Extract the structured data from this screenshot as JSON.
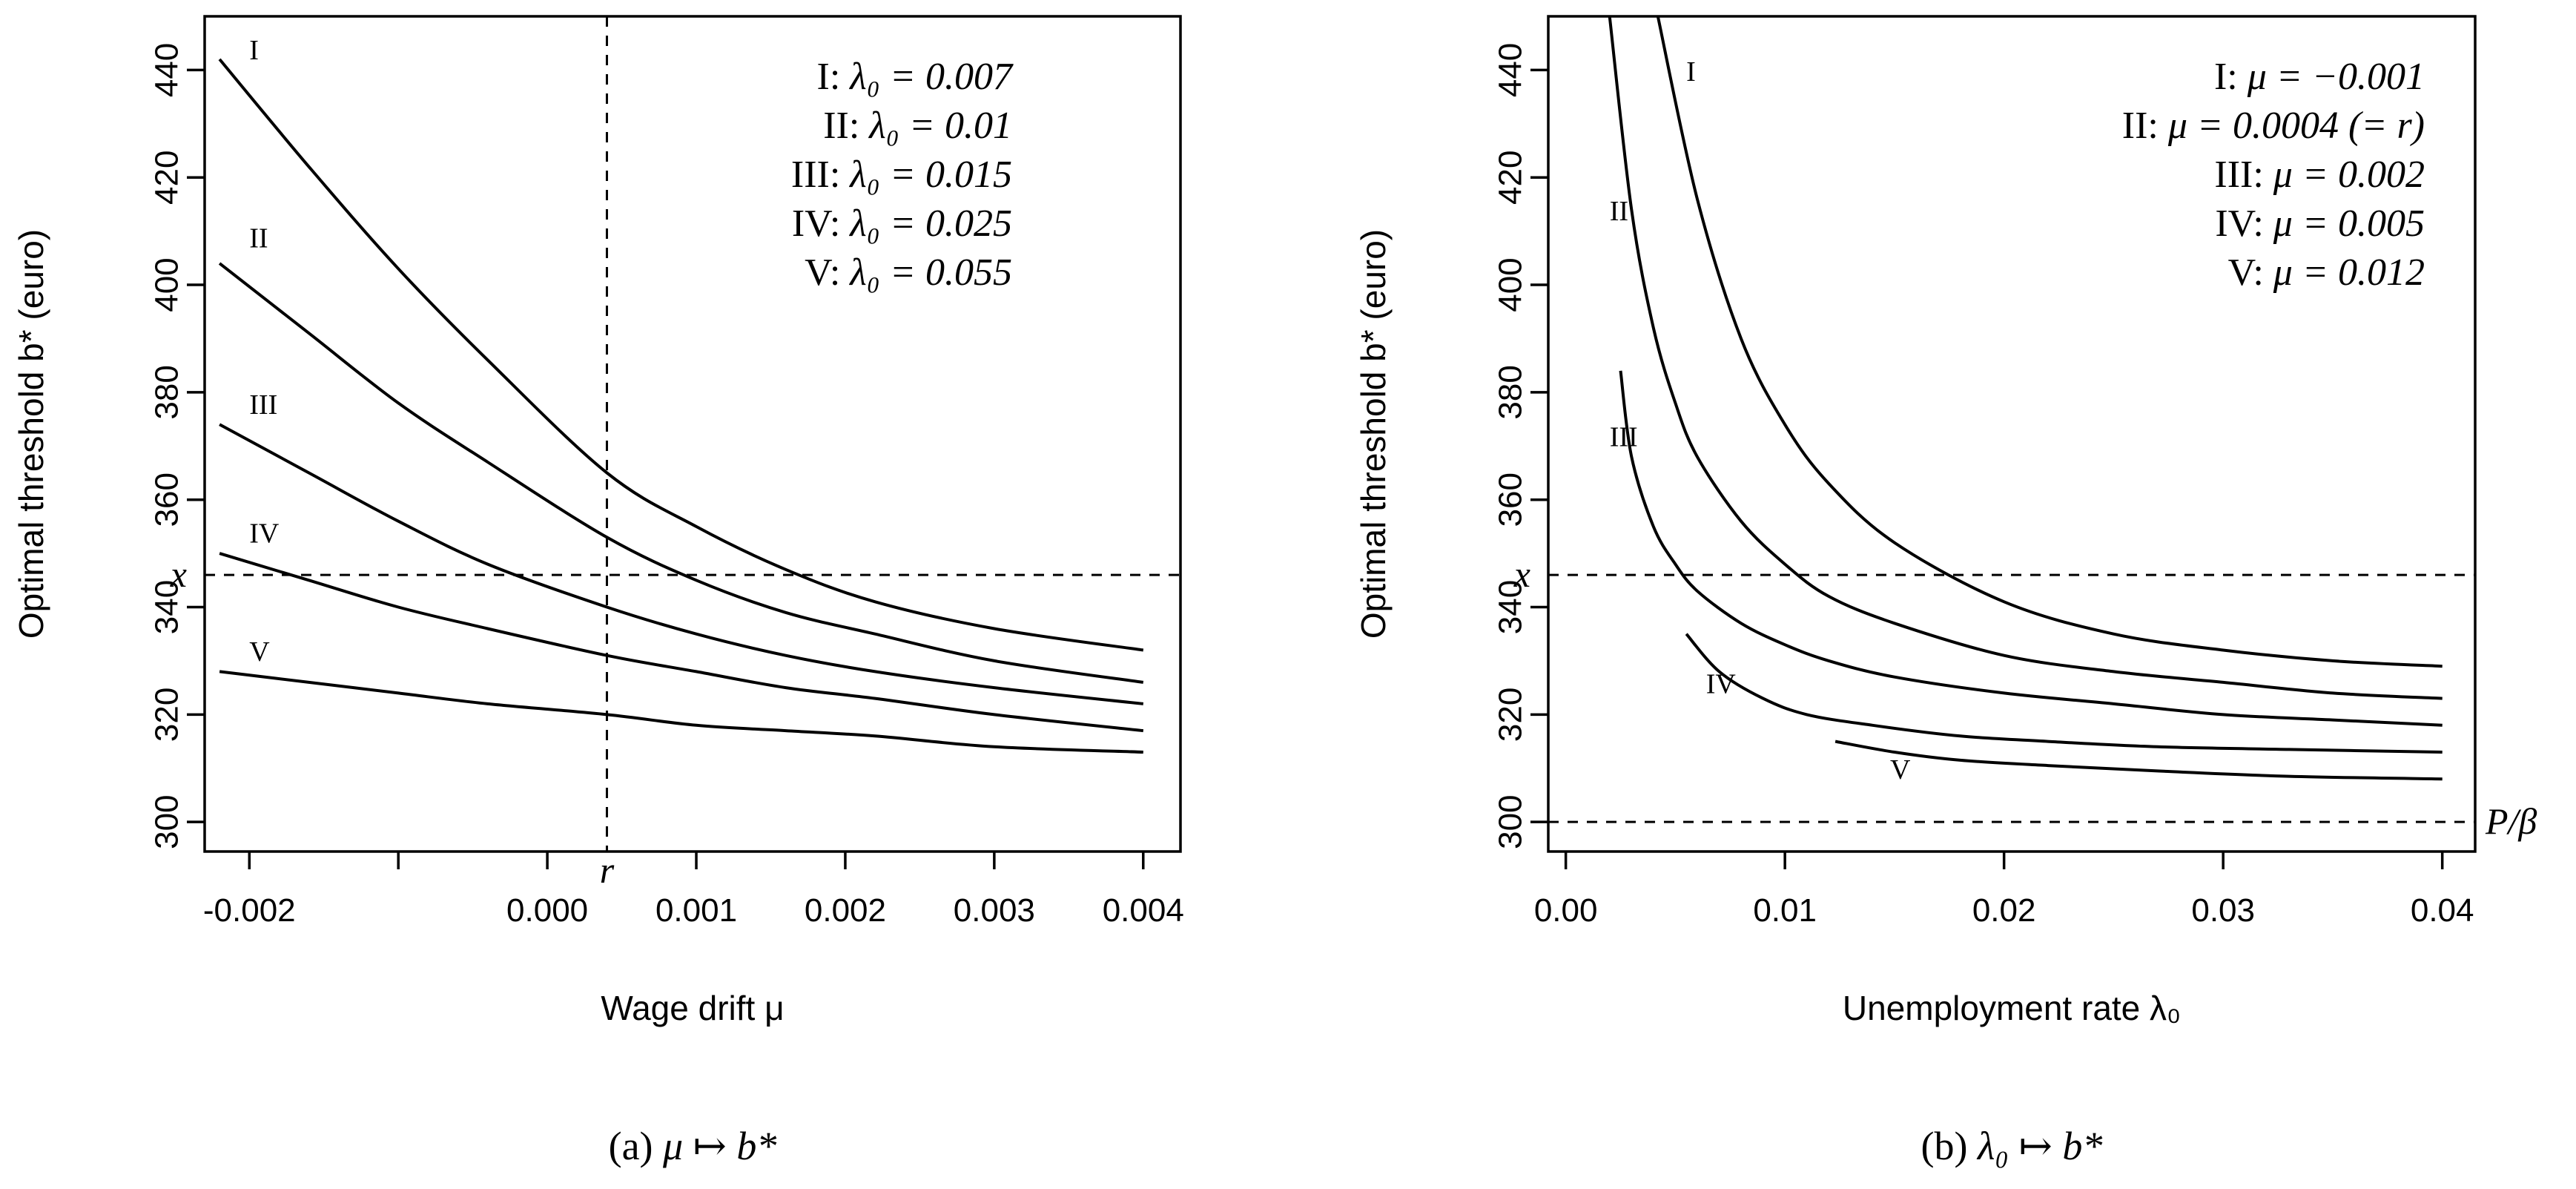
{
  "chart_data": [
    {
      "type": "line",
      "panel_id": "a",
      "caption": {
        "label": "(a)",
        "math": "μ ↦ b*"
      },
      "xlabel": "Wage drift μ",
      "ylabel": "Optimal threshold b* (euro)",
      "xlim": [
        -0.0023,
        0.00425
      ],
      "ylim": [
        294.5,
        450
      ],
      "xticks": [
        {
          "v": -0.002,
          "label": "-0.002"
        },
        {
          "v": -0.001,
          "label": ""
        },
        {
          "v": 0.0,
          "label": "0.000"
        },
        {
          "v": 0.001,
          "label": "0.001"
        },
        {
          "v": 0.002,
          "label": "0.002"
        },
        {
          "v": 0.003,
          "label": "0.003"
        },
        {
          "v": 0.004,
          "label": "0.004"
        }
      ],
      "yticks": [
        300,
        320,
        340,
        360,
        380,
        400,
        420,
        440
      ],
      "hlines": [
        {
          "y": 346,
          "label": "x",
          "side": "left"
        }
      ],
      "vlines": [
        {
          "x": 0.0004,
          "label": "r"
        }
      ],
      "legend": {
        "position": "top-right",
        "entries": [
          {
            "id": "I",
            "text": "λ₀ = 0.007"
          },
          {
            "id": "II",
            "text": "λ₀ = 0.01"
          },
          {
            "id": "III",
            "text": "λ₀ = 0.015"
          },
          {
            "id": "IV",
            "text": "λ₀ = 0.025"
          },
          {
            "id": "V",
            "text": "λ₀ = 0.055"
          }
        ]
      },
      "series": [
        {
          "name": "I",
          "label_at": [
            -0.002,
            442
          ],
          "x": [
            -0.0022,
            -0.0016,
            -0.001,
            -0.0004,
            0.0004,
            0.001,
            0.0016,
            0.0022,
            0.003,
            0.004
          ],
          "y": [
            442,
            422,
            403,
            386,
            365,
            355,
            347,
            341,
            336,
            332
          ]
        },
        {
          "name": "II",
          "label_at": [
            -0.002,
            407
          ],
          "x": [
            -0.0022,
            -0.0016,
            -0.001,
            -0.0004,
            0.0004,
            0.001,
            0.0016,
            0.0022,
            0.003,
            0.004
          ],
          "y": [
            404,
            391,
            378,
            367,
            353,
            345,
            339,
            335,
            330,
            326
          ]
        },
        {
          "name": "III",
          "label_at": [
            -0.002,
            376
          ],
          "x": [
            -0.0022,
            -0.0016,
            -0.001,
            -0.0004,
            0.0004,
            0.001,
            0.0016,
            0.0022,
            0.003,
            0.004
          ],
          "y": [
            374,
            365,
            356,
            348,
            340,
            335,
            331,
            328,
            325,
            322
          ]
        },
        {
          "name": "IV",
          "label_at": [
            -0.002,
            352
          ],
          "x": [
            -0.0022,
            -0.0016,
            -0.001,
            -0.0004,
            0.0004,
            0.001,
            0.0016,
            0.0022,
            0.003,
            0.004
          ],
          "y": [
            350,
            345,
            340,
            336,
            331,
            328,
            325,
            323,
            320,
            317
          ]
        },
        {
          "name": "V",
          "label_at": [
            -0.002,
            330
          ],
          "x": [
            -0.0022,
            -0.0016,
            -0.001,
            -0.0004,
            0.0004,
            0.001,
            0.0016,
            0.0022,
            0.003,
            0.004
          ],
          "y": [
            328,
            326,
            324,
            322,
            320,
            318,
            317,
            316,
            314,
            313
          ]
        }
      ]
    },
    {
      "type": "line",
      "panel_id": "b",
      "caption": {
        "label": "(b)",
        "math": "λ₀ ↦ b*"
      },
      "xlabel": "Unemployment rate λ₀",
      "ylabel": "Optimal threshold b* (euro)",
      "xlim": [
        -0.0008,
        0.0415
      ],
      "ylim": [
        294.5,
        450
      ],
      "xticks": [
        {
          "v": 0.0,
          "label": "0.00"
        },
        {
          "v": 0.01,
          "label": "0.01"
        },
        {
          "v": 0.02,
          "label": "0.02"
        },
        {
          "v": 0.03,
          "label": "0.03"
        },
        {
          "v": 0.04,
          "label": "0.04"
        }
      ],
      "yticks": [
        300,
        320,
        340,
        360,
        380,
        400,
        420,
        440
      ],
      "hlines": [
        {
          "y": 346,
          "label": "x",
          "side": "left"
        },
        {
          "y": 300,
          "label": "P/β",
          "side": "right"
        }
      ],
      "vlines": [],
      "legend": {
        "position": "top-right",
        "entries": [
          {
            "id": "I",
            "text": "μ = −0.001"
          },
          {
            "id": "II",
            "text": "μ = 0.0004 (= r)"
          },
          {
            "id": "III",
            "text": "μ = 0.002"
          },
          {
            "id": "IV",
            "text": "μ = 0.005"
          },
          {
            "id": "V",
            "text": "μ = 0.012"
          }
        ]
      },
      "series": [
        {
          "name": "I",
          "label_at": [
            0.0055,
            438
          ],
          "x": [
            0.0042,
            0.006,
            0.008,
            0.01,
            0.012,
            0.015,
            0.02,
            0.025,
            0.03,
            0.035,
            0.04
          ],
          "y": [
            450,
            416,
            390,
            374,
            363,
            352,
            341,
            335,
            332,
            330,
            329
          ]
        },
        {
          "name": "II",
          "label_at": [
            0.002,
            412
          ],
          "x": [
            0.002,
            0.003,
            0.004,
            0.005,
            0.006,
            0.008,
            0.01,
            0.012,
            0.015,
            0.02,
            0.025,
            0.03,
            0.035,
            0.04
          ],
          "y": [
            450,
            414,
            392,
            378,
            368,
            356,
            348,
            342,
            337,
            331,
            328,
            326,
            324,
            323
          ]
        },
        {
          "name": "III",
          "label_at": [
            0.002,
            370
          ],
          "x": [
            0.0025,
            0.003,
            0.004,
            0.005,
            0.006,
            0.008,
            0.01,
            0.012,
            0.015,
            0.02,
            0.025,
            0.03,
            0.035,
            0.04
          ],
          "y": [
            384,
            368,
            355,
            348,
            343,
            337,
            333,
            330,
            327,
            324,
            322,
            320,
            319,
            318
          ]
        },
        {
          "name": "IV",
          "label_at": [
            0.0064,
            324
          ],
          "x": [
            0.0055,
            0.007,
            0.009,
            0.011,
            0.014,
            0.018,
            0.022,
            0.027,
            0.033,
            0.04
          ],
          "y": [
            335,
            328,
            323,
            320,
            318,
            316,
            315,
            314,
            313.5,
            313
          ]
        },
        {
          "name": "V",
          "label_at": [
            0.0148,
            308
          ],
          "x": [
            0.0123,
            0.015,
            0.018,
            0.022,
            0.027,
            0.033,
            0.04
          ],
          "y": [
            315,
            313,
            311.5,
            310.5,
            309.5,
            308.5,
            308
          ]
        }
      ]
    }
  ],
  "colors": {
    "ink": "#000000",
    "background": "#ffffff"
  }
}
